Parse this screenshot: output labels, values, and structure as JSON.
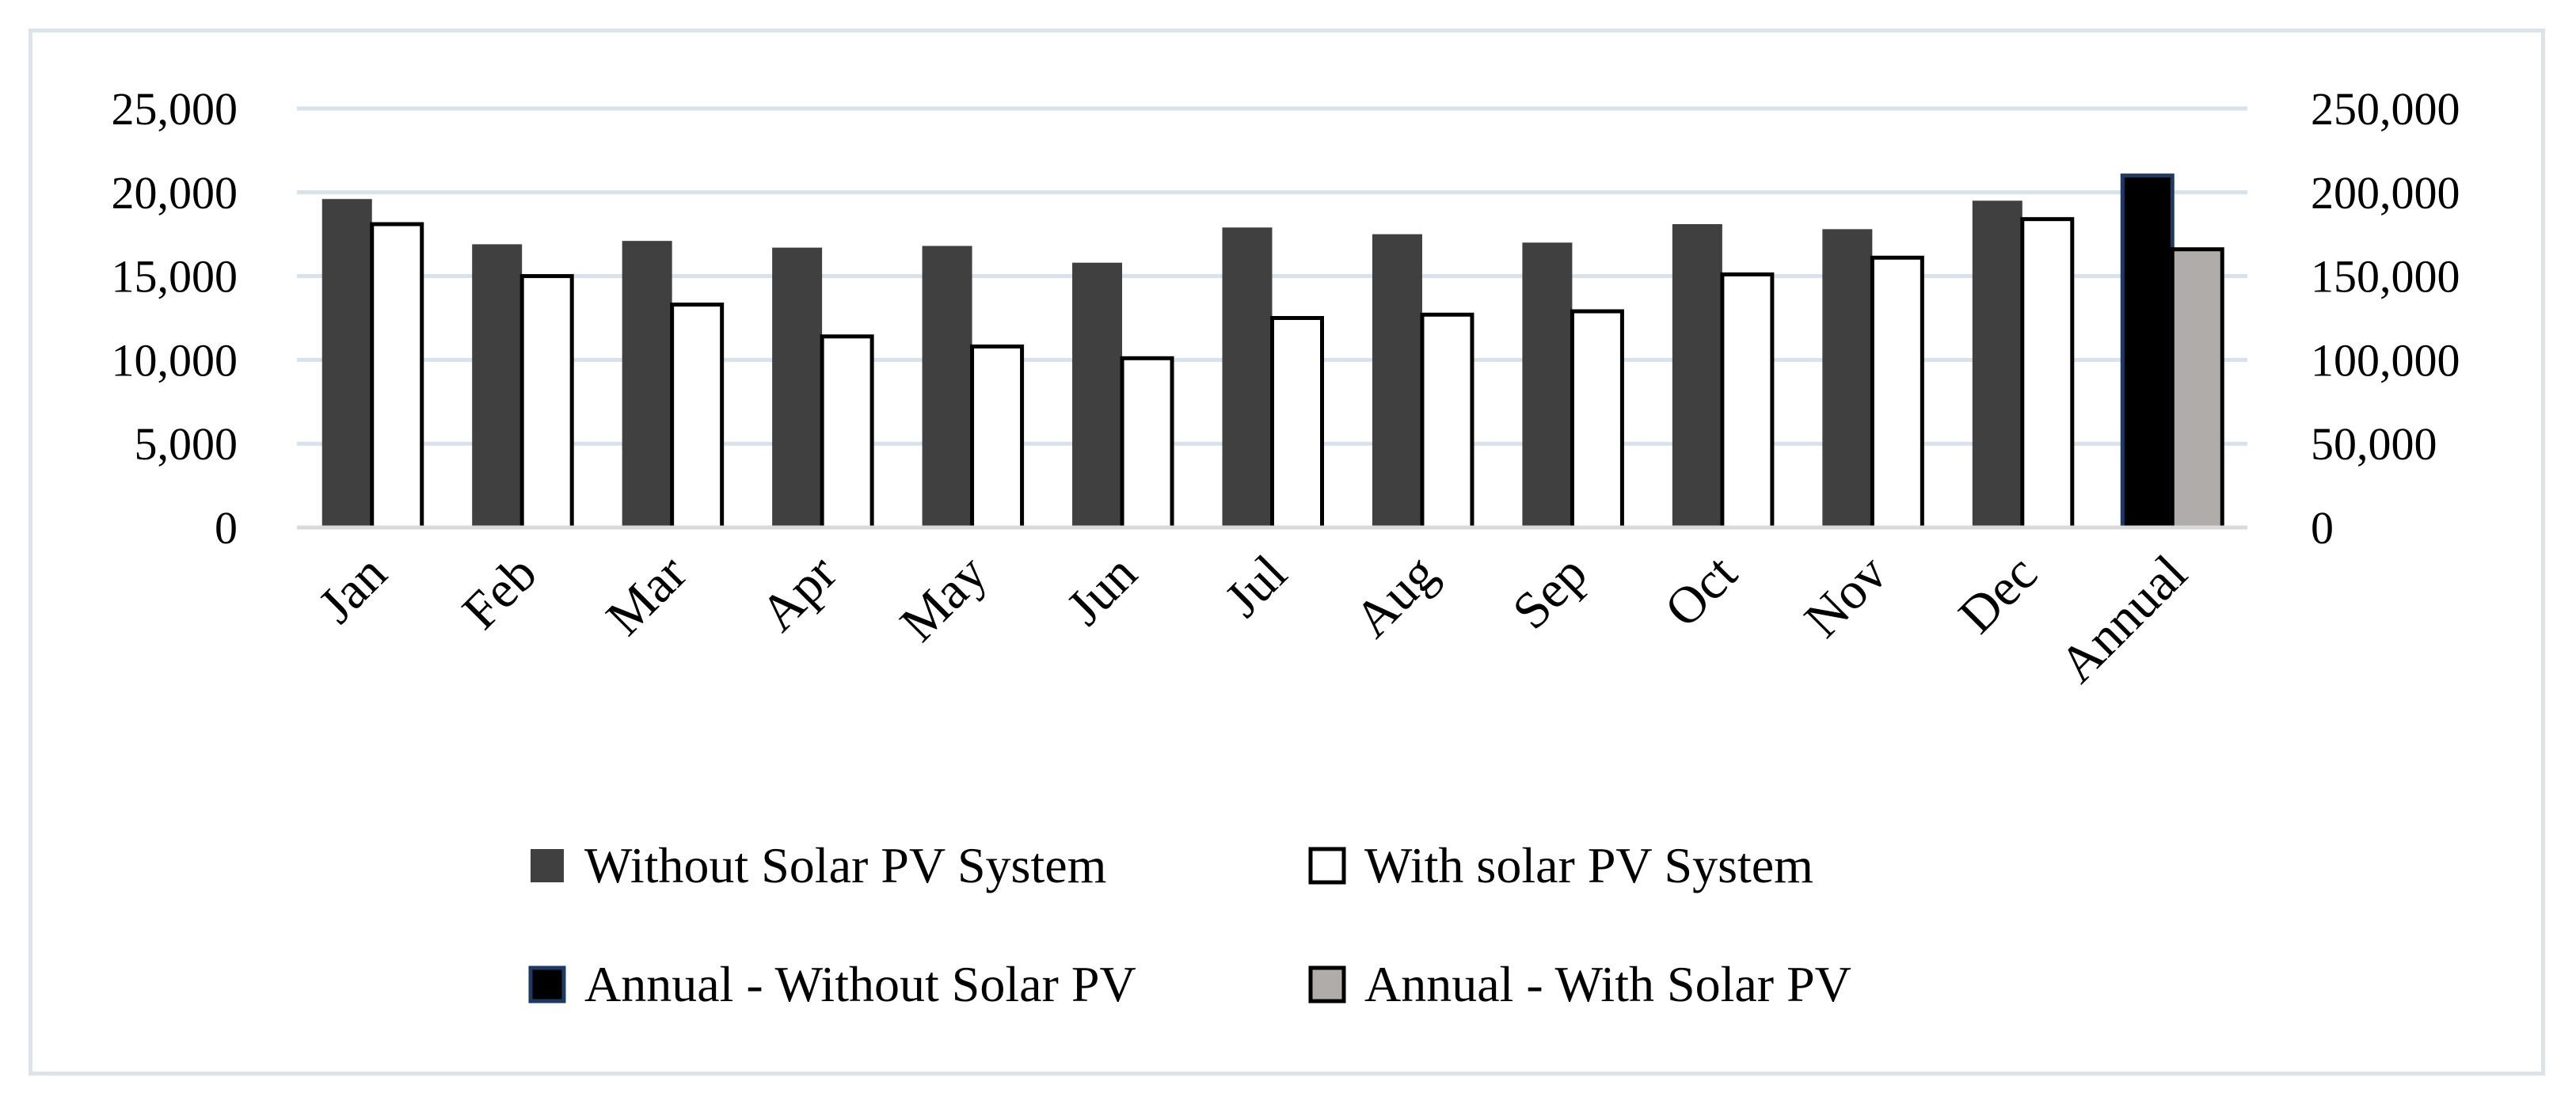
{
  "chart_data": {
    "type": "bar",
    "title": "",
    "xlabel": "",
    "ylabel": "",
    "categories": [
      "Jan",
      "Feb",
      "Mar",
      "Apr",
      "May",
      "Jun",
      "Jul",
      "Aug",
      "Sep",
      "Oct",
      "Nov",
      "Dec"
    ],
    "series": [
      {
        "name": "Without Solar PV System",
        "axis": "left",
        "color": "#404040",
        "values": [
          19600,
          16900,
          17100,
          16700,
          16800,
          15800,
          17900,
          17500,
          17000,
          18100,
          17800,
          19500
        ]
      },
      {
        "name": "With solar PV System",
        "axis": "left",
        "color": "#ffffff",
        "values": [
          18100,
          15000,
          13300,
          11400,
          10800,
          10100,
          12500,
          12700,
          12900,
          15100,
          16100,
          18400
        ]
      }
    ],
    "annual": {
      "category": "Annual",
      "series": [
        {
          "name": "Annual - Without Solar PV",
          "axis": "right",
          "color": "#000000",
          "edge_color": "#1f3864",
          "value": 210000
        },
        {
          "name": "Annual - With Solar PV",
          "axis": "right",
          "color": "#b0acaa",
          "value": 166000
        }
      ]
    },
    "left_axis": {
      "min": 0,
      "max": 25000,
      "ticks": [
        0,
        5000,
        10000,
        15000,
        20000,
        25000
      ],
      "tick_labels": [
        "0",
        "5,000",
        "10,000",
        "15,000",
        "20,000",
        "25,000"
      ]
    },
    "right_axis": {
      "min": 0,
      "max": 250000,
      "ticks": [
        0,
        50000,
        100000,
        150000,
        200000,
        250000
      ],
      "tick_labels": [
        "0",
        "50,000",
        "100,000",
        "150,000",
        "200,000",
        "250,000"
      ]
    },
    "legend": {
      "position": "bottom",
      "entries": [
        "Without Solar PV System",
        "With solar PV System",
        "Annual - Without Solar PV",
        "Annual - With Solar PV"
      ]
    },
    "grid": true,
    "colors": {
      "gridline": "#d9e1ea",
      "axis": "#d9d9d9",
      "frame": "#dbe3ec"
    }
  }
}
